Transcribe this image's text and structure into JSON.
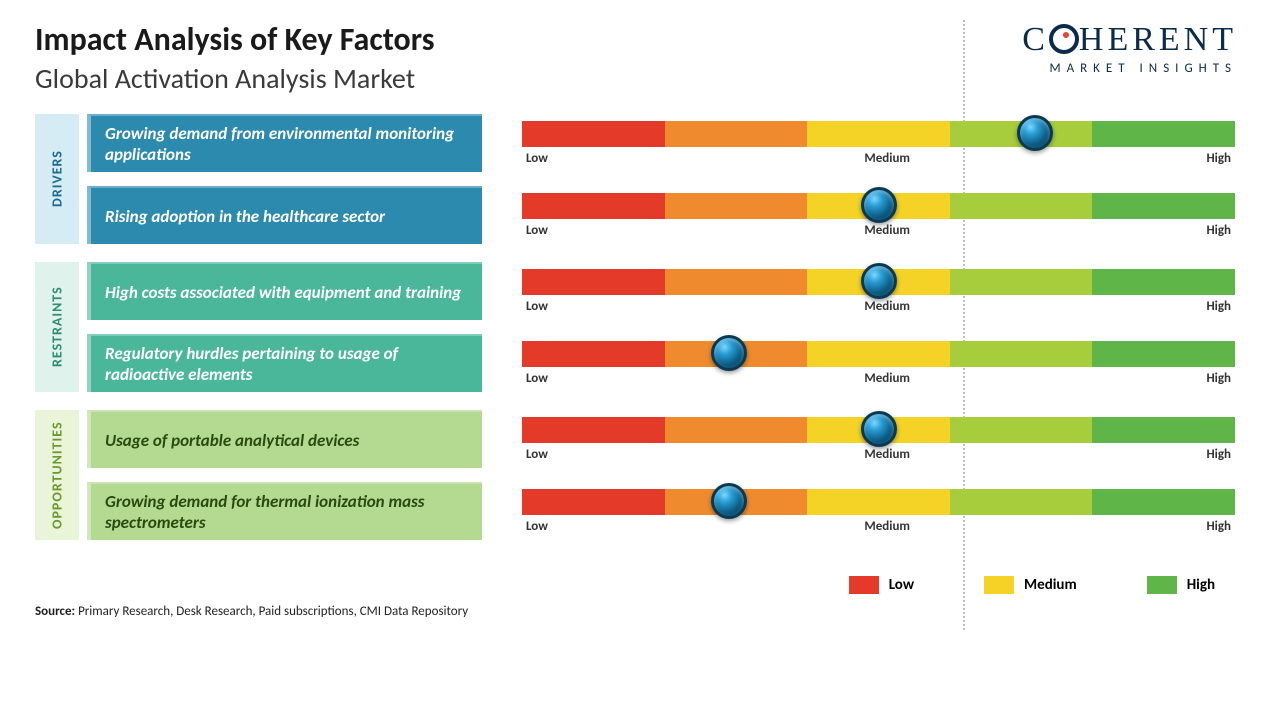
{
  "title": "Impact Analysis of Key Factors",
  "subtitle": "Global Activation Analysis Market",
  "logo": {
    "main": "C   HERENT",
    "sub": "MARKET INSIGHTS"
  },
  "gauge": {
    "segment_colors": [
      "#e43a2a",
      "#ef8b2e",
      "#f4d226",
      "#a7cc3c",
      "#5fb547"
    ],
    "labels": {
      "low": "Low",
      "medium": "Medium",
      "high": "High"
    }
  },
  "categories": [
    {
      "name": "DRIVERS",
      "tab_bg": "#d6ecf5",
      "tab_color": "#1c6a94",
      "box_bg": "#2d8aaf",
      "items": [
        {
          "text": "Growing demand from environmental monitoring applications",
          "marker_pct": 72
        },
        {
          "text": "Rising adoption in the healthcare sector",
          "marker_pct": 50
        }
      ]
    },
    {
      "name": "RESTRAINTS",
      "tab_bg": "#e0f2ec",
      "tab_color": "#2e8d73",
      "box_bg": "#4bb79a",
      "items": [
        {
          "text": "High costs associated with equipment and training",
          "marker_pct": 50
        },
        {
          "text": "Regulatory hurdles pertaining to usage of radioactive elements",
          "marker_pct": 29
        }
      ]
    },
    {
      "name": "OPPORTUNITIES",
      "tab_bg": "#eaf4d8",
      "tab_color": "#6a9a2e",
      "box_bg": "#b4d990",
      "box_color": "#2a4a10",
      "items": [
        {
          "text": "Usage of portable analytical devices",
          "marker_pct": 50
        },
        {
          "text": "Growing demand for thermal ionization mass spectrometers",
          "marker_pct": 29
        }
      ]
    }
  ],
  "legend": [
    {
      "label": "Low",
      "color": "#e43a2a"
    },
    {
      "label": "Medium",
      "color": "#f4d226"
    },
    {
      "label": "High",
      "color": "#5fb547"
    }
  ],
  "source_label": "Source:",
  "source_text": " Primary Research, Desk Research, Paid subscriptions, CMI Data Repository"
}
